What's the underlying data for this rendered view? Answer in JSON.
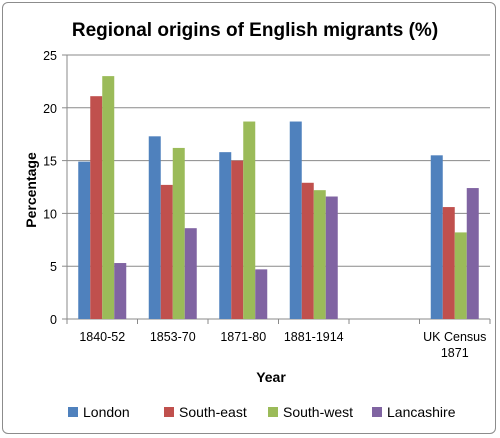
{
  "chart_data": {
    "type": "bar",
    "title": "Regional origins of English migrants (%)",
    "xlabel": "Year",
    "ylabel": "Percentage",
    "ylim": [
      0,
      25
    ],
    "yticks": [
      0,
      5,
      10,
      15,
      20,
      25
    ],
    "grid": true,
    "legend_position": "bottom",
    "categories": [
      "1840-52",
      "1853-70",
      "1871-80",
      "1881-1914",
      "",
      "UK Census 1871"
    ],
    "category_lines": [
      [
        "1840-52"
      ],
      [
        "1853-70"
      ],
      [
        "1871-80"
      ],
      [
        "1881-1914"
      ],
      [],
      [
        "UK Census",
        "1871"
      ]
    ],
    "series": [
      {
        "name": "London",
        "color": "#4f81bd",
        "values": [
          14.9,
          17.3,
          15.8,
          18.7,
          null,
          15.5
        ]
      },
      {
        "name": "South-east",
        "color": "#c0504d",
        "values": [
          21.1,
          12.7,
          15.0,
          12.9,
          null,
          10.6
        ]
      },
      {
        "name": "South-west",
        "color": "#9bbb59",
        "values": [
          23.0,
          16.2,
          18.7,
          12.2,
          null,
          8.2
        ]
      },
      {
        "name": "Lancashire",
        "color": "#8064a2",
        "values": [
          5.3,
          8.6,
          4.7,
          11.6,
          null,
          12.4
        ]
      }
    ]
  }
}
